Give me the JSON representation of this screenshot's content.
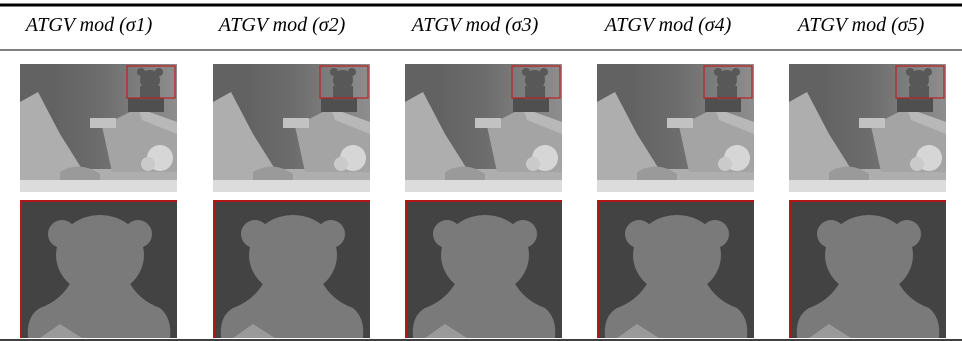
{
  "header": {
    "columns": [
      "ATGV mod (σ1)",
      "ATGV mod (σ2)",
      "ATGV mod (σ3)",
      "ATGV mod (σ4)",
      "ATGV mod (σ5)"
    ]
  }
}
